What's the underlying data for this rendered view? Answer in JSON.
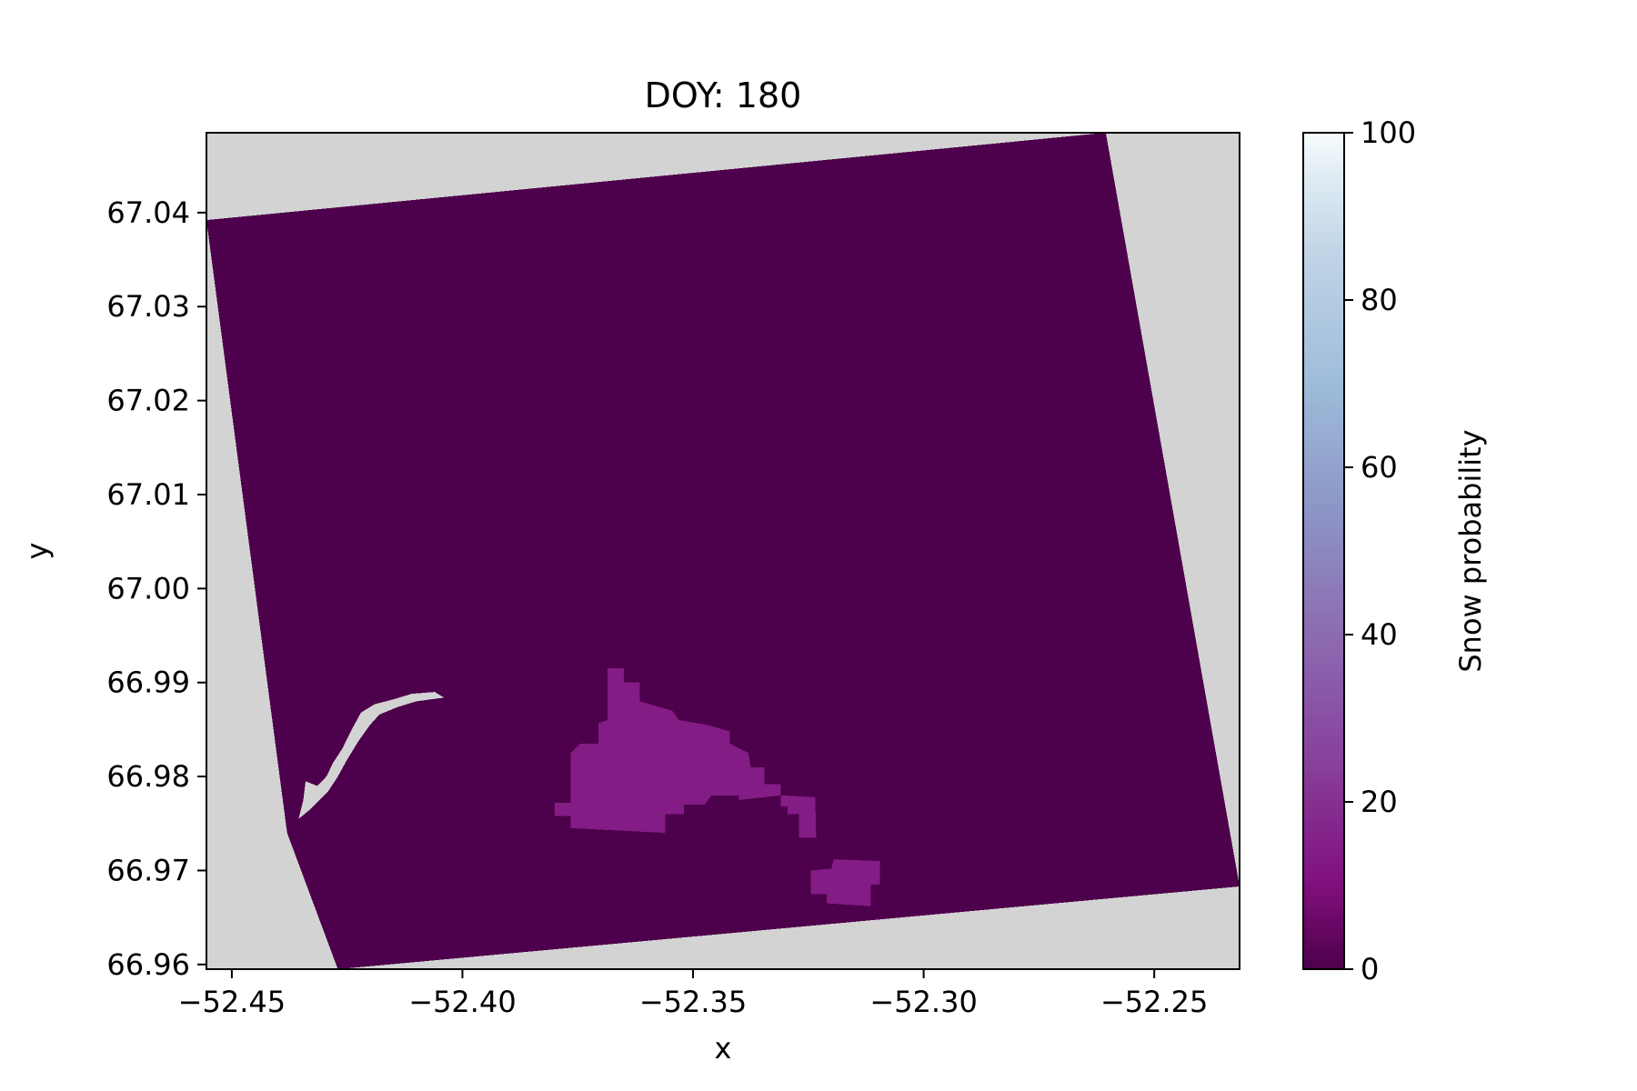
{
  "chart_data": {
    "type": "heatmap",
    "title": "DOY: 180",
    "xlabel": "x",
    "ylabel": "y",
    "xlim": [
      -52.4555,
      -52.2315
    ],
    "ylim": [
      66.9595,
      67.0485
    ],
    "x_ticks": [
      -52.45,
      -52.4,
      -52.35,
      -52.3,
      -52.25
    ],
    "x_tick_labels": [
      "−52.45",
      "−52.40",
      "−52.35",
      "−52.30",
      "−52.25"
    ],
    "y_ticks": [
      67.04,
      67.03,
      67.02,
      67.01,
      67.0,
      66.99,
      66.98,
      66.97,
      66.96
    ],
    "y_tick_labels": [
      "67.04",
      "67.03",
      "67.02",
      "67.01",
      "67.00",
      "66.99",
      "66.98",
      "66.97",
      "66.96"
    ],
    "background_color": "#d3d3d3",
    "grid": false,
    "colorbar": {
      "label": "Snow probability",
      "range": [
        0,
        100
      ],
      "ticks": [
        0,
        20,
        40,
        60,
        80,
        100
      ],
      "tick_labels": [
        "0",
        "20",
        "40",
        "60",
        "80",
        "100"
      ],
      "colormap": "BuPu_r",
      "stops": [
        {
          "value": 0,
          "color": "#4d004b"
        },
        {
          "value": 10,
          "color": "#810f7c"
        },
        {
          "value": 25,
          "color": "#88419d"
        },
        {
          "value": 40,
          "color": "#8c6bb1"
        },
        {
          "value": 55,
          "color": "#8c96c6"
        },
        {
          "value": 70,
          "color": "#9ebcda"
        },
        {
          "value": 85,
          "color": "#bfd3e6"
        },
        {
          "value": 95,
          "color": "#e0ecf4"
        },
        {
          "value": 100,
          "color": "#f7fcfd"
        }
      ]
    },
    "regions": [
      {
        "name": "scene-footprint",
        "value": 0,
        "polygon": [
          [
            -52.4555,
            67.0392
          ],
          [
            -52.2605,
            67.0485
          ],
          [
            -52.2315,
            66.9683
          ],
          [
            -52.427,
            66.9595
          ],
          [
            -52.438,
            66.974
          ]
        ]
      },
      {
        "name": "snow-patch-main",
        "value": 14,
        "polygon": [
          [
            -52.3685,
            66.9915
          ],
          [
            -52.365,
            66.9915
          ],
          [
            -52.365,
            66.99
          ],
          [
            -52.3615,
            66.99
          ],
          [
            -52.3615,
            66.988
          ],
          [
            -52.3545,
            66.987
          ],
          [
            -52.353,
            66.986
          ],
          [
            -52.347,
            66.9855
          ],
          [
            -52.342,
            66.9848
          ],
          [
            -52.342,
            66.9835
          ],
          [
            -52.338,
            66.9825
          ],
          [
            -52.3375,
            66.981
          ],
          [
            -52.3345,
            66.981
          ],
          [
            -52.3345,
            66.9792
          ],
          [
            -52.331,
            66.9792
          ],
          [
            -52.331,
            66.978
          ],
          [
            -52.34,
            66.9775
          ],
          [
            -52.34,
            66.978
          ],
          [
            -52.346,
            66.978
          ],
          [
            -52.3475,
            66.977
          ],
          [
            -52.352,
            66.977
          ],
          [
            -52.352,
            66.976
          ],
          [
            -52.356,
            66.976
          ],
          [
            -52.356,
            66.974
          ],
          [
            -52.3765,
            66.9745
          ],
          [
            -52.3765,
            66.9758
          ],
          [
            -52.38,
            66.9758
          ],
          [
            -52.38,
            66.9772
          ],
          [
            -52.3765,
            66.9772
          ],
          [
            -52.3765,
            66.9825
          ],
          [
            -52.3745,
            66.9835
          ],
          [
            -52.3705,
            66.9835
          ],
          [
            -52.3705,
            66.9857
          ],
          [
            -52.3685,
            66.986
          ]
        ]
      },
      {
        "name": "snow-patch-east-small",
        "value": 14,
        "polygon": [
          [
            -52.331,
            66.978
          ],
          [
            -52.3235,
            66.9778
          ],
          [
            -52.3233,
            66.9735
          ],
          [
            -52.327,
            66.9735
          ],
          [
            -52.327,
            66.976
          ],
          [
            -52.3295,
            66.976
          ],
          [
            -52.3295,
            66.9768
          ],
          [
            -52.331,
            66.9768
          ]
        ]
      },
      {
        "name": "snow-patch-southeast",
        "value": 14,
        "polygon": [
          [
            -52.3195,
            66.9712
          ],
          [
            -52.3095,
            66.971
          ],
          [
            -52.3095,
            66.9685
          ],
          [
            -52.3115,
            66.9685
          ],
          [
            -52.3115,
            66.9662
          ],
          [
            -52.321,
            66.9665
          ],
          [
            -52.321,
            66.9675
          ],
          [
            -52.3245,
            66.9675
          ],
          [
            -52.3245,
            66.97
          ],
          [
            -52.32,
            66.9702
          ]
        ]
      },
      {
        "name": "nodata-coastline",
        "value": null,
        "polygon": [
          [
            -52.434,
            66.9795
          ],
          [
            -52.4315,
            66.979
          ],
          [
            -52.4295,
            66.98
          ],
          [
            -52.428,
            66.9815
          ],
          [
            -52.426,
            66.983
          ],
          [
            -52.424,
            66.985
          ],
          [
            -52.422,
            66.9868
          ],
          [
            -52.419,
            66.9877
          ],
          [
            -52.415,
            66.9882
          ],
          [
            -52.411,
            66.9888
          ],
          [
            -52.406,
            66.989
          ],
          [
            -52.404,
            66.9884
          ],
          [
            -52.41,
            66.988
          ],
          [
            -52.414,
            66.9874
          ],
          [
            -52.418,
            66.9866
          ],
          [
            -52.42,
            66.9855
          ],
          [
            -52.4225,
            66.9838
          ],
          [
            -52.425,
            66.9818
          ],
          [
            -52.427,
            66.98
          ],
          [
            -52.429,
            66.9785
          ],
          [
            -52.431,
            66.9775
          ],
          [
            -52.433,
            66.9765
          ],
          [
            -52.4355,
            66.9755
          ],
          [
            -52.4345,
            66.9775
          ]
        ]
      }
    ]
  }
}
